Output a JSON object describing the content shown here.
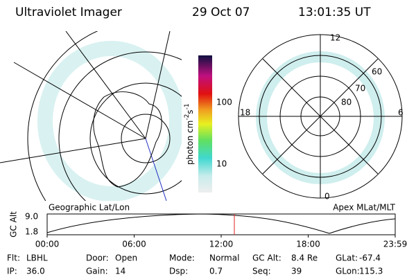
{
  "header": {
    "title": "Ultraviolet Imager",
    "date": "29 Oct 07",
    "time": "13:01:35 UT"
  },
  "colorbar": {
    "label": {
      "text": "photon cm",
      "exp1": "-2",
      "unit2": "s",
      "exp2": "-1"
    },
    "ticks": [
      "100",
      "10"
    ]
  },
  "left_panel": {
    "caption": "Geographic Lat/Lon"
  },
  "right_panel": {
    "caption": "Apex MLat/MLT",
    "mlt_labels": [
      "12",
      "18",
      "6",
      "0"
    ],
    "lat_labels": [
      "60",
      "70",
      "80"
    ]
  },
  "altitude_plot": {
    "ylabel": "GC Alt",
    "yticks": [
      "9.0",
      "1.8"
    ],
    "xticks": [
      "00:00",
      "06:00",
      "12:00",
      "18:00",
      "23:59"
    ]
  },
  "info": {
    "rows": [
      [
        [
          "Flt:",
          "LBHL"
        ],
        [
          "Door:",
          "Open"
        ],
        [
          "Mode:",
          "Normal"
        ],
        [
          "GC Alt:",
          "8.4 Re"
        ],
        [
          "GLat:",
          "-67.4"
        ]
      ],
      [
        [
          "IP:",
          "36.0"
        ],
        [
          "Gain:",
          "14"
        ],
        [
          "Dsp:",
          "0.7"
        ],
        [
          "Seq:",
          "39"
        ],
        [
          "GLon:",
          "115.3"
        ]
      ]
    ]
  }
}
